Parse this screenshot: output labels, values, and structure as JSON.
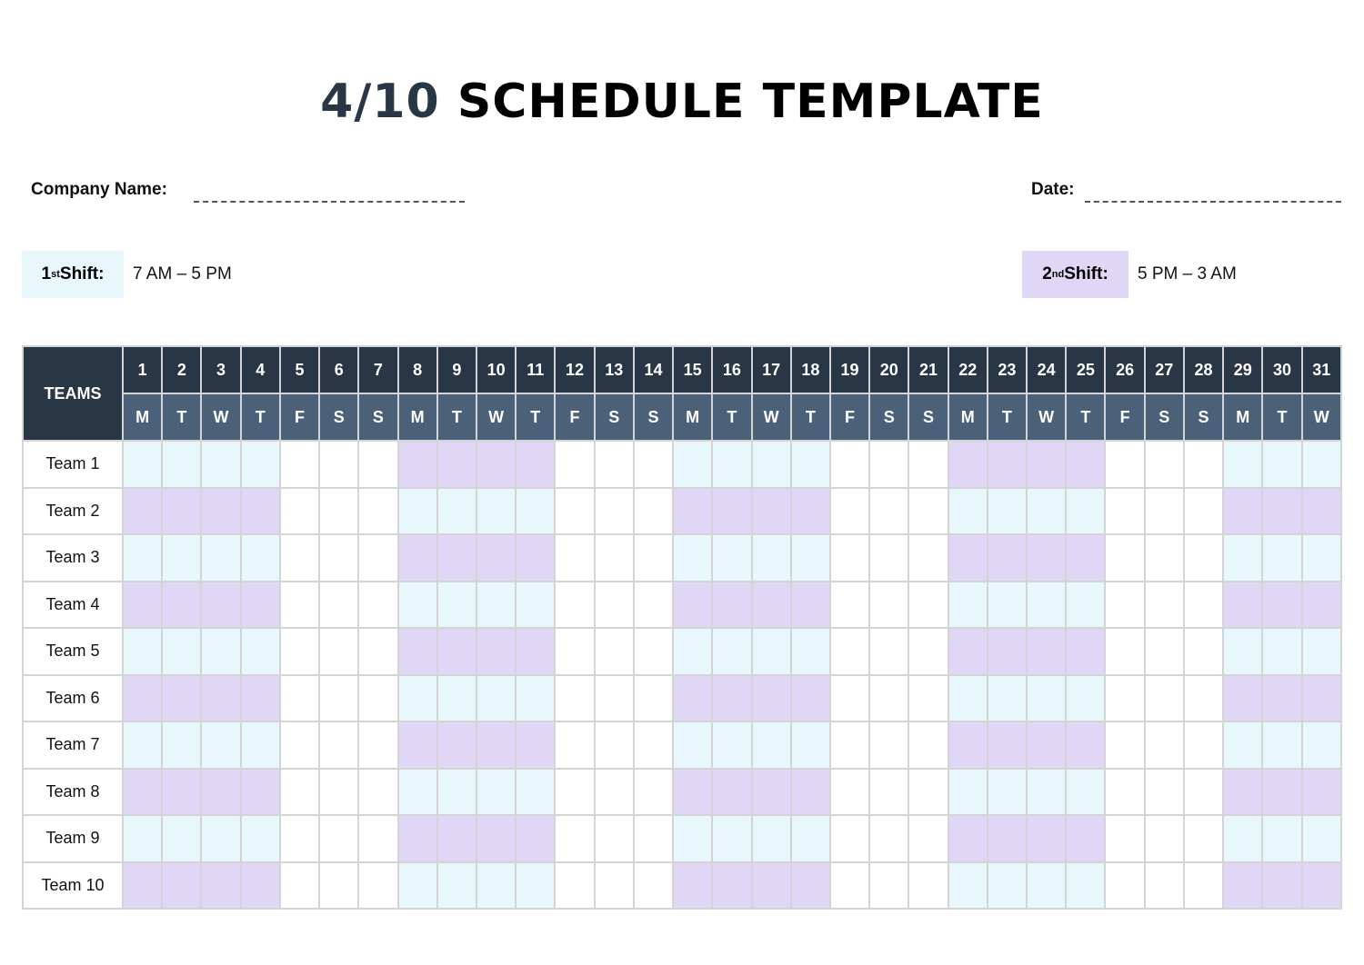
{
  "title": {
    "num": "4/10",
    "rest": " SCHEDULE TEMPLATE"
  },
  "company_label": "Company Name:",
  "date_label": "Date:",
  "shift1": {
    "n": "1",
    "sup": "st",
    "label": " Shift:",
    "time": "7 AM – 5 PM",
    "color": "#e8f7fb"
  },
  "shift2": {
    "n": "2",
    "sup": "nd",
    "label": " Shift:",
    "time": "5 PM – 3 AM",
    "color": "#e0d6f5"
  },
  "table": {
    "teams_header": "TEAMS",
    "days": [
      "1",
      "2",
      "3",
      "4",
      "5",
      "6",
      "7",
      "8",
      "9",
      "10",
      "11",
      "12",
      "13",
      "14",
      "15",
      "16",
      "17",
      "18",
      "19",
      "20",
      "21",
      "22",
      "23",
      "24",
      "25",
      "26",
      "27",
      "28",
      "29",
      "30",
      "31"
    ],
    "weekdays": [
      "M",
      "T",
      "W",
      "T",
      "F",
      "S",
      "S",
      "M",
      "T",
      "W",
      "T",
      "F",
      "S",
      "S",
      "M",
      "T",
      "W",
      "T",
      "F",
      "S",
      "S",
      "M",
      "T",
      "W",
      "T",
      "F",
      "S",
      "S",
      "M",
      "T",
      "W"
    ],
    "teams": [
      {
        "name": "Team 1",
        "shifts": "1111---2222---1111---2222---111"
      },
      {
        "name": "Team 2",
        "shifts": "2222---1111---2222---1111---222"
      },
      {
        "name": "Team 3",
        "shifts": "1111---2222---1111---2222---111"
      },
      {
        "name": "Team 4",
        "shifts": "2222---1111---2222---1111---222"
      },
      {
        "name": "Team 5",
        "shifts": "1111---2222---1111---2222---111"
      },
      {
        "name": "Team 6",
        "shifts": "2222---1111---2222---1111---222"
      },
      {
        "name": "Team 7",
        "shifts": "1111---2222---1111---2222---111"
      },
      {
        "name": "Team 8",
        "shifts": "2222---1111---2222---1111---222"
      },
      {
        "name": "Team 9",
        "shifts": "1111---2222---1111---2222---111"
      },
      {
        "name": "Team 10",
        "shifts": "2222---1111---2222---1111---222"
      }
    ]
  }
}
